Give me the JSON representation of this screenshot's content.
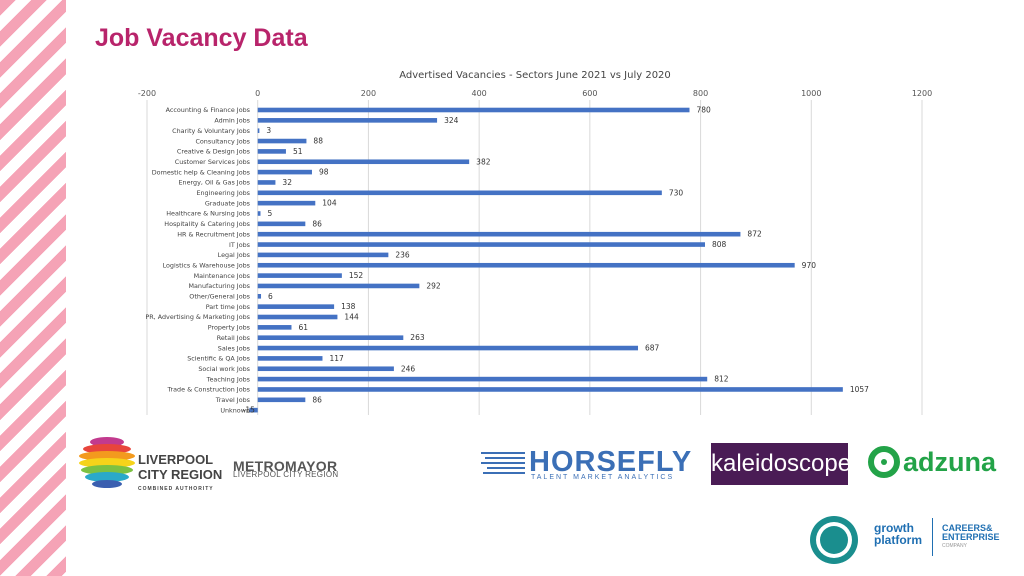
{
  "page": {
    "title": "Job Vacancy Data"
  },
  "chart_data": {
    "type": "bar",
    "orientation": "horizontal",
    "title": "Advertised Vacancies - Sectors June 2021 vs July 2020",
    "xlim": [
      -200,
      1200
    ],
    "xticks": [
      -200,
      0,
      200,
      400,
      600,
      800,
      1000,
      1200
    ],
    "xtick_labels": [
      "-200",
      "0",
      "200",
      "400",
      "600",
      "800",
      "1000",
      "1200"
    ],
    "grid": "vertical",
    "bar_color": "#4472c4",
    "categories": [
      "Accounting & Finance Jobs",
      "Admin Jobs",
      "Charity & Voluntary Jobs",
      "Consultancy Jobs",
      "Creative & Design Jobs",
      "Customer Services Jobs",
      "Domestic help & Cleaning Jobs",
      "Energy, Oil & Gas Jobs",
      "Engineering Jobs",
      "Graduate Jobs",
      "Healthcare & Nursing Jobs",
      "Hospitality & Catering Jobs",
      "HR & Recruitment Jobs",
      "IT Jobs",
      "Legal Jobs",
      "Logistics & Warehouse Jobs",
      "Maintenance Jobs",
      "Manufacturing Jobs",
      "Other/General Jobs",
      "Part time Jobs",
      "PR, Advertising & Marketing Jobs",
      "Property Jobs",
      "Retail Jobs",
      "Sales Jobs",
      "Scientific & QA Jobs",
      "Social work Jobs",
      "Teaching Jobs",
      "Trade & Construction Jobs",
      "Travel Jobs",
      "Unknown"
    ],
    "values": [
      780,
      324,
      3,
      88,
      51,
      382,
      98,
      32,
      730,
      104,
      5,
      86,
      872,
      808,
      236,
      970,
      152,
      292,
      6,
      138,
      144,
      61,
      263,
      687,
      117,
      246,
      812,
      1057,
      86,
      -15
    ],
    "data_labels": [
      "780",
      "324",
      "3",
      "88",
      "51",
      "382",
      "98",
      "32",
      "730",
      "104",
      "5",
      "86",
      "872",
      "808",
      "236",
      "970",
      "152",
      "292",
      "6",
      "138",
      "144",
      "61",
      "263",
      "687",
      "117",
      "246",
      "812",
      "1057",
      "86",
      "-15"
    ]
  },
  "logos": {
    "lcr": {
      "line1": "LIVERPOOL",
      "line2": "CITY REGION",
      "line3": "COMBINED AUTHORITY"
    },
    "metro_mayor": {
      "title": "METROMAYOR",
      "subtitle": "LIVERPOOL CITY REGION"
    },
    "horsefly": {
      "title": "HORSEFLY",
      "subtitle": "TALENT MARKET ANALYTICS"
    },
    "kaleidoscope": {
      "text": "kaleidoscope"
    },
    "adzuna": {
      "text": "adzuna"
    },
    "growth_platform": {
      "line1": "growth",
      "line2": "platform"
    },
    "careers_enterprise": {
      "line1": "CAREERS&",
      "line2": "ENTERPRISE",
      "line3": "COMPANY"
    }
  }
}
